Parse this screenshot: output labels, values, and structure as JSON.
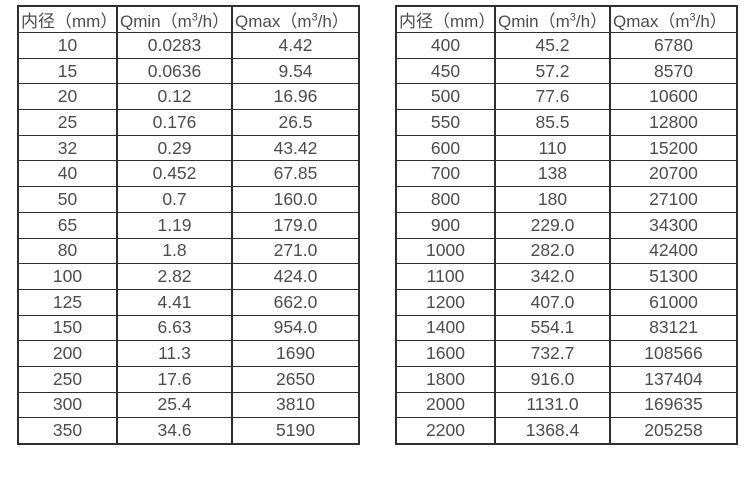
{
  "tables": [
    {
      "name": "flow-table-small-diameters",
      "headers": [
        "内径（mm）",
        "Qmin（m³/h）",
        "Qmax（m³/h）"
      ],
      "rows": [
        [
          "10",
          "0.0283",
          "4.42"
        ],
        [
          "15",
          "0.0636",
          "9.54"
        ],
        [
          "20",
          "0.12",
          "16.96"
        ],
        [
          "25",
          "0.176",
          "26.5"
        ],
        [
          "32",
          "0.29",
          "43.42"
        ],
        [
          "40",
          "0.452",
          "67.85"
        ],
        [
          "50",
          "0.7",
          "160.0"
        ],
        [
          "65",
          "1.19",
          "179.0"
        ],
        [
          "80",
          "1.8",
          "271.0"
        ],
        [
          "100",
          "2.82",
          "424.0"
        ],
        [
          "125",
          "4.41",
          "662.0"
        ],
        [
          "150",
          "6.63",
          "954.0"
        ],
        [
          "200",
          "11.3",
          "1690"
        ],
        [
          "250",
          "17.6",
          "2650"
        ],
        [
          "300",
          "25.4",
          "3810"
        ],
        [
          "350",
          "34.6",
          "5190"
        ]
      ]
    },
    {
      "name": "flow-table-large-diameters",
      "headers": [
        "内径（mm）",
        "Qmin（m³/h）",
        "Qmax（m³/h）"
      ],
      "rows": [
        [
          "400",
          "45.2",
          "6780"
        ],
        [
          "450",
          "57.2",
          "8570"
        ],
        [
          "500",
          "77.6",
          "10600"
        ],
        [
          "550",
          "85.5",
          "12800"
        ],
        [
          "600",
          "110",
          "15200"
        ],
        [
          "700",
          "138",
          "20700"
        ],
        [
          "800",
          "180",
          "27100"
        ],
        [
          "900",
          "229.0",
          "34300"
        ],
        [
          "1000",
          "282.0",
          "42400"
        ],
        [
          "1100",
          "342.0",
          "51300"
        ],
        [
          "1200",
          "407.0",
          "61000"
        ],
        [
          "1400",
          "554.1",
          "83121"
        ],
        [
          "1600",
          "732.7",
          "108566"
        ],
        [
          "1800",
          "916.0",
          "137404"
        ],
        [
          "2000",
          "1131.0",
          "169635"
        ],
        [
          "2200",
          "1368.4",
          "205258"
        ]
      ]
    }
  ]
}
